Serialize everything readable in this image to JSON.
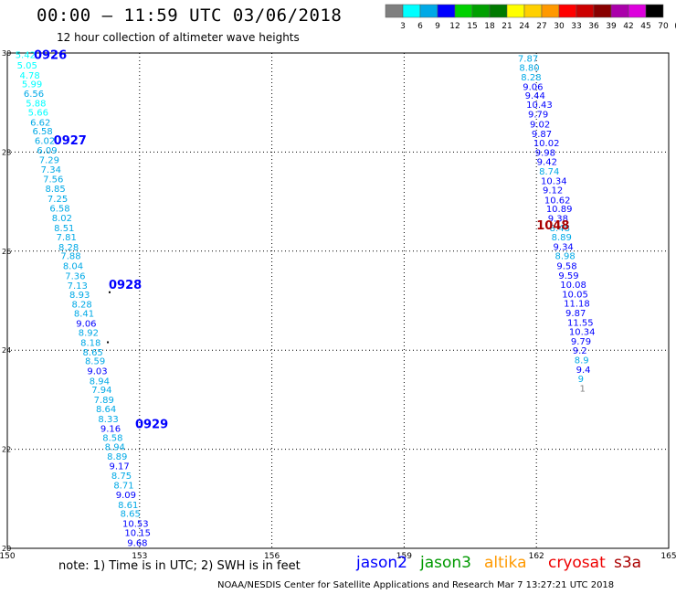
{
  "header": {
    "title": "00:00 — 11:59 UTC 03/06/2018",
    "subtitle": "12 hour collection of altimeter wave heights"
  },
  "legend": {
    "labels": [
      "3",
      "6",
      "9",
      "12",
      "15",
      "18",
      "21",
      "24",
      "27",
      "30",
      "33",
      "36",
      "39",
      "42",
      "45",
      "70",
      "(ft)"
    ],
    "colors": [
      "#7f7f7f",
      "#00ffff",
      "#00a9e6",
      "#0000ff",
      "#00d100",
      "#00a000",
      "#007a00",
      "#ffff00",
      "#ffd000",
      "#ff9900",
      "#ff0000",
      "#cc0000",
      "#880000",
      "#aa00aa",
      "#dd00dd",
      "#000000"
    ]
  },
  "footer": {
    "note": "note:  1) Time is in UTC;  2) SWH is in feet",
    "missions": [
      {
        "name": "jason2",
        "color": "#0000ff"
      },
      {
        "name": "jason3",
        "color": "#009900"
      },
      {
        "name": "altika",
        "color": "#ff9900"
      },
      {
        "name": "cryosat",
        "color": "#ee0000"
      },
      {
        "name": "s3a",
        "color": "#aa0000"
      }
    ],
    "credit": "NOAA/NESDIS Center for Satellite Applications and Research     Mar  7 13:27:21 UTC 2018"
  },
  "chart_data": {
    "type": "scatter",
    "title": "00:00 — 11:59 UTC 03/06/2018",
    "subtitle": "12 hour collection of altimeter wave heights",
    "x_ticks": [
      "150",
      "153",
      "156",
      "159",
      "162",
      "165"
    ],
    "y_ticks": [
      "30",
      "28",
      "26",
      "24",
      "22",
      "20"
    ],
    "xlim": [
      150,
      165
    ],
    "ylim": [
      20,
      30
    ],
    "grid": true,
    "color_scale_ft": [
      3,
      6,
      9,
      12,
      15,
      18,
      21,
      24,
      27,
      30,
      33,
      36,
      39,
      42,
      45,
      70
    ],
    "time_labels": [
      {
        "text": "0926",
        "lon": 150.6,
        "lat": 29.97
      },
      {
        "text": "0927",
        "lon": 151.05,
        "lat": 28.25
      },
      {
        "text": "0928",
        "lon": 152.3,
        "lat": 25.33
      },
      {
        "text": "0929",
        "lon": 152.9,
        "lat": 22.52
      },
      {
        "text": "1048",
        "lon": 162.0,
        "lat": 26.53
      }
    ],
    "series": [
      {
        "points": [
          {
            "lon": 150.18,
            "lat": 29.97,
            "v": "5.42"
          },
          {
            "lon": 150.22,
            "lat": 29.76,
            "v": "5.05"
          },
          {
            "lon": 150.28,
            "lat": 29.56,
            "v": "4.78"
          },
          {
            "lon": 150.33,
            "lat": 29.38,
            "v": "5.99"
          },
          {
            "lon": 150.37,
            "lat": 29.19,
            "v": "6.56"
          },
          {
            "lon": 150.42,
            "lat": 28.99,
            "v": "5.88"
          },
          {
            "lon": 150.47,
            "lat": 28.81,
            "v": "5.66"
          },
          {
            "lon": 150.52,
            "lat": 28.61,
            "v": "6.62"
          },
          {
            "lon": 150.57,
            "lat": 28.43,
            "v": "6.58"
          },
          {
            "lon": 150.62,
            "lat": 28.24,
            "v": "6.02"
          },
          {
            "lon": 150.67,
            "lat": 28.04,
            "v": "6.09"
          },
          {
            "lon": 150.72,
            "lat": 27.85,
            "v": "7.29"
          },
          {
            "lon": 150.76,
            "lat": 27.66,
            "v": "7.34"
          },
          {
            "lon": 150.81,
            "lat": 27.46,
            "v": "7.56"
          },
          {
            "lon": 150.86,
            "lat": 27.27,
            "v": "8.85"
          },
          {
            "lon": 150.91,
            "lat": 27.07,
            "v": "7.25"
          },
          {
            "lon": 150.96,
            "lat": 26.87,
            "v": "6.58"
          },
          {
            "lon": 151.01,
            "lat": 26.68,
            "v": "8.02"
          },
          {
            "lon": 151.06,
            "lat": 26.48,
            "v": "8.51"
          },
          {
            "lon": 151.11,
            "lat": 26.29,
            "v": "7.81"
          },
          {
            "lon": 151.16,
            "lat": 26.09,
            "v": "8.28"
          },
          {
            "lon": 151.21,
            "lat": 25.91,
            "v": "7.88"
          },
          {
            "lon": 151.26,
            "lat": 25.71,
            "v": "8.04"
          },
          {
            "lon": 151.31,
            "lat": 25.51,
            "v": "7.36"
          },
          {
            "lon": 151.36,
            "lat": 25.31,
            "v": "7.13"
          },
          {
            "lon": 151.41,
            "lat": 25.13,
            "v": "8.93"
          },
          {
            "lon": 151.46,
            "lat": 24.94,
            "v": "8.28"
          },
          {
            "lon": 151.51,
            "lat": 24.75,
            "v": "8.41"
          },
          {
            "lon": 151.56,
            "lat": 24.55,
            "v": "9.06"
          },
          {
            "lon": 151.61,
            "lat": 24.36,
            "v": "8.92"
          },
          {
            "lon": 151.66,
            "lat": 24.16,
            "v": "8.18"
          },
          {
            "lon": 151.71,
            "lat": 23.97,
            "v": "8.65"
          },
          {
            "lon": 151.76,
            "lat": 23.79,
            "v": "8.59"
          },
          {
            "lon": 151.81,
            "lat": 23.59,
            "v": "9.03"
          },
          {
            "lon": 151.86,
            "lat": 23.39,
            "v": "8.94"
          },
          {
            "lon": 151.91,
            "lat": 23.21,
            "v": "7.94"
          },
          {
            "lon": 151.96,
            "lat": 23.01,
            "v": "7.89"
          },
          {
            "lon": 152.01,
            "lat": 22.82,
            "v": "8.64"
          },
          {
            "lon": 152.06,
            "lat": 22.62,
            "v": "8.33"
          },
          {
            "lon": 152.11,
            "lat": 22.43,
            "v": "9.16"
          },
          {
            "lon": 152.16,
            "lat": 22.24,
            "v": "8.58"
          },
          {
            "lon": 152.21,
            "lat": 22.06,
            "v": "8.94"
          },
          {
            "lon": 152.26,
            "lat": 21.86,
            "v": "8.89"
          },
          {
            "lon": 152.31,
            "lat": 21.67,
            "v": "9.17"
          },
          {
            "lon": 152.36,
            "lat": 21.48,
            "v": "8.75"
          },
          {
            "lon": 152.41,
            "lat": 21.28,
            "v": "8.71"
          },
          {
            "lon": 152.46,
            "lat": 21.09,
            "v": "9.09"
          },
          {
            "lon": 152.51,
            "lat": 20.89,
            "v": "8.61"
          },
          {
            "lon": 152.56,
            "lat": 20.71,
            "v": "8.65"
          },
          {
            "lon": 152.61,
            "lat": 20.51,
            "v": "10.53"
          },
          {
            "lon": 152.66,
            "lat": 20.32,
            "v": "10.15"
          },
          {
            "lon": 152.72,
            "lat": 20.12,
            "v": "9.68"
          }
        ]
      },
      {
        "points": [
          {
            "lon": 161.58,
            "lat": 29.9,
            "v": "7.87"
          },
          {
            "lon": 161.61,
            "lat": 29.71,
            "v": "8.80"
          },
          {
            "lon": 161.65,
            "lat": 29.52,
            "v": "8.28"
          },
          {
            "lon": 161.69,
            "lat": 29.33,
            "v": "9.06"
          },
          {
            "lon": 161.74,
            "lat": 29.15,
            "v": "9.44"
          },
          {
            "lon": 161.77,
            "lat": 28.97,
            "v": "10.43"
          },
          {
            "lon": 161.81,
            "lat": 28.77,
            "v": "9.79"
          },
          {
            "lon": 161.85,
            "lat": 28.57,
            "v": "9.02"
          },
          {
            "lon": 161.89,
            "lat": 28.38,
            "v": "9.87"
          },
          {
            "lon": 161.93,
            "lat": 28.19,
            "v": "10.02"
          },
          {
            "lon": 161.97,
            "lat": 28.0,
            "v": "9.98"
          },
          {
            "lon": 162.01,
            "lat": 27.81,
            "v": "9.42"
          },
          {
            "lon": 162.06,
            "lat": 27.62,
            "v": "8.74"
          },
          {
            "lon": 162.1,
            "lat": 27.43,
            "v": "10.34"
          },
          {
            "lon": 162.14,
            "lat": 27.24,
            "v": "9.12"
          },
          {
            "lon": 162.18,
            "lat": 27.04,
            "v": "10.62"
          },
          {
            "lon": 162.22,
            "lat": 26.86,
            "v": "10.89"
          },
          {
            "lon": 162.26,
            "lat": 26.67,
            "v": "9.38"
          },
          {
            "lon": 162.3,
            "lat": 26.48,
            "v": "8.48"
          },
          {
            "lon": 162.34,
            "lat": 26.29,
            "v": "8.89"
          },
          {
            "lon": 162.38,
            "lat": 26.1,
            "v": "9.34"
          },
          {
            "lon": 162.42,
            "lat": 25.91,
            "v": "8.98"
          },
          {
            "lon": 162.46,
            "lat": 25.71,
            "v": "9.58"
          },
          {
            "lon": 162.5,
            "lat": 25.52,
            "v": "9.59"
          },
          {
            "lon": 162.54,
            "lat": 25.33,
            "v": "10.08"
          },
          {
            "lon": 162.58,
            "lat": 25.14,
            "v": "10.05"
          },
          {
            "lon": 162.62,
            "lat": 24.95,
            "v": "11.18"
          },
          {
            "lon": 162.66,
            "lat": 24.76,
            "v": "9.87"
          },
          {
            "lon": 162.7,
            "lat": 24.57,
            "v": "11.55"
          },
          {
            "lon": 162.74,
            "lat": 24.38,
            "v": "10.34"
          },
          {
            "lon": 162.78,
            "lat": 24.19,
            "v": "9.79"
          },
          {
            "lon": 162.82,
            "lat": 24.0,
            "v": "9.2"
          },
          {
            "lon": 162.86,
            "lat": 23.81,
            "v": "8.9"
          },
          {
            "lon": 162.9,
            "lat": 23.62,
            "v": "9.4"
          },
          {
            "lon": 162.94,
            "lat": 23.43,
            "v": "9"
          },
          {
            "lon": 162.98,
            "lat": 23.24,
            "v": "1"
          }
        ]
      }
    ],
    "marks": [
      {
        "lon": 152.32,
        "lat": 25.17
      },
      {
        "lon": 152.28,
        "lat": 24.16
      }
    ]
  }
}
